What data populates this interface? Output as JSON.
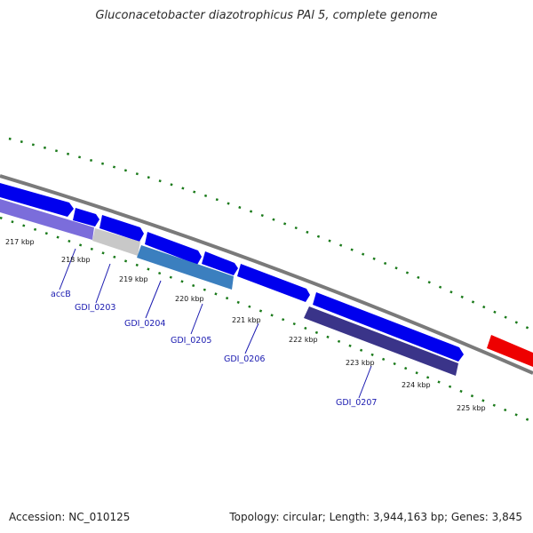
{
  "title": "Gluconacetobacter diazotrophicus PAl 5, complete genome",
  "footer": {
    "accession": "Accession: NC_010125",
    "topology": "Topology: circular; Length: 3,944,163 bp; Genes: 3,845"
  },
  "scale_labels": [
    "217 kbp",
    "218 kbp",
    "219 kbp",
    "220 kbp",
    "221 kbp",
    "222 kbp",
    "223 kbp",
    "224 kbp",
    "225 kbp"
  ],
  "gene_labels": [
    "accB",
    "GDI_0203",
    "GDI_0204",
    "GDI_0205",
    "GDI_0206",
    "GDI_0207"
  ],
  "colors": {
    "forward_cds": "#0000ee",
    "reverse_cds_dark": "#3a3489",
    "reverse_cds_light": "#7b6ddb",
    "reverse_cds_steel": "#3b7fbf",
    "other_feature": "#c8c8c8",
    "rna_feature": "#ee0000",
    "backbone": "#7a7a7a",
    "tick": "#1a7a1a",
    "gene_label": "#1a1ab0"
  }
}
